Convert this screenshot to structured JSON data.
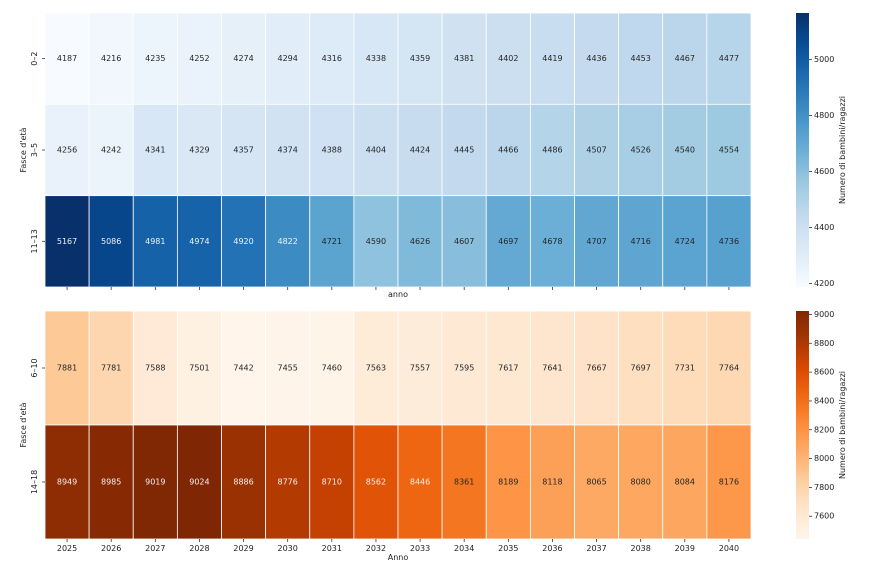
{
  "chart_data": [
    {
      "type": "heatmap",
      "colormap": "Blues",
      "xlabel": "anno",
      "ylabel": "Fasce d'età",
      "x": [
        "2025",
        "2026",
        "2027",
        "2028",
        "2029",
        "2030",
        "2031",
        "2032",
        "2033",
        "2034",
        "2035",
        "2036",
        "2037",
        "2038",
        "2039",
        "2040"
      ],
      "show_x_tick_labels": false,
      "rows": [
        "0–2",
        "3–5",
        "11–13"
      ],
      "values": [
        [
          4187,
          4216,
          4235,
          4252,
          4274,
          4294,
          4316,
          4338,
          4359,
          4381,
          4402,
          4419,
          4436,
          4453,
          4467,
          4477
        ],
        [
          4256,
          4242,
          4341,
          4329,
          4357,
          4374,
          4388,
          4404,
          4424,
          4445,
          4466,
          4486,
          4507,
          4526,
          4540,
          4554
        ],
        [
          5167,
          5086,
          4981,
          4974,
          4920,
          4822,
          4721,
          4590,
          4626,
          4607,
          4697,
          4678,
          4707,
          4716,
          4724,
          4736
        ]
      ],
      "colorbar": {
        "label": "Numero di bambini/ragazzi",
        "range": [
          4187,
          5167
        ],
        "ticks": [
          "4200",
          "4400",
          "4600",
          "4800",
          "5000"
        ]
      }
    },
    {
      "type": "heatmap",
      "colormap": "Oranges",
      "xlabel": "Anno",
      "ylabel": "Fasce d'età",
      "x": [
        "2025",
        "2026",
        "2027",
        "2028",
        "2029",
        "2030",
        "2031",
        "2032",
        "2033",
        "2034",
        "2035",
        "2036",
        "2037",
        "2038",
        "2039",
        "2040"
      ],
      "show_x_tick_labels": true,
      "rows": [
        "6–10",
        "14–18"
      ],
      "values": [
        [
          7881,
          7781,
          7588,
          7501,
          7442,
          7455,
          7460,
          7563,
          7557,
          7595,
          7617,
          7641,
          7667,
          7697,
          7731,
          7764
        ],
        [
          8949,
          8985,
          9019,
          9024,
          8886,
          8776,
          8710,
          8562,
          8446,
          8361,
          8189,
          8118,
          8065,
          8080,
          8084,
          8176
        ]
      ],
      "colorbar": {
        "label": "Numero di bambini/ragazzi",
        "range": [
          7442,
          9024
        ],
        "ticks": [
          "7600",
          "7800",
          "8000",
          "8200",
          "8400",
          "8600",
          "8800",
          "9000"
        ]
      }
    }
  ]
}
